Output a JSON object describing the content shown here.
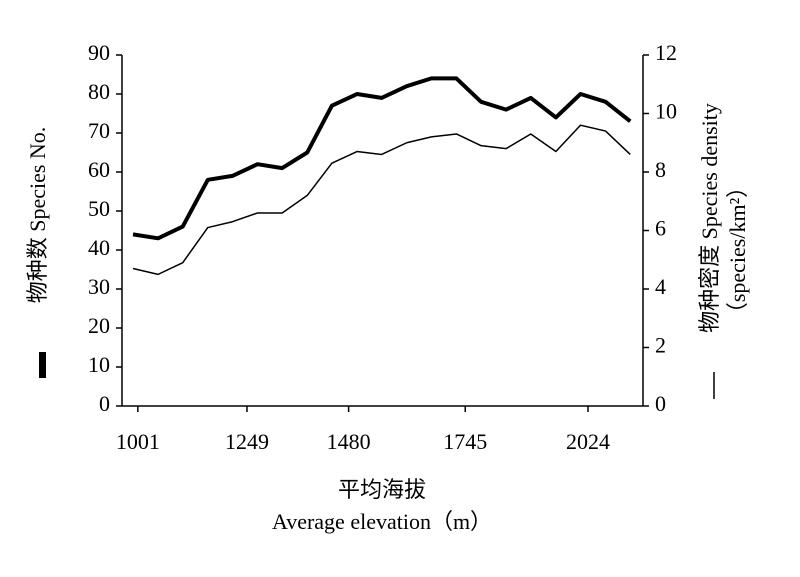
{
  "chart_data": {
    "type": "line",
    "x_label": "平均海拔",
    "x_label_en": "Average elevation（m）",
    "y_label": "物种数  Species No.",
    "y2_label": "物种密度 Species density",
    "y2_label_unit": "（species/km²）",
    "x": [
      990,
      1047,
      1103,
      1160,
      1216,
      1273,
      1329,
      1386,
      1442,
      1499,
      1555,
      1612,
      1668,
      1725,
      1781,
      1838,
      1894,
      1951,
      2007,
      2064,
      2120
    ],
    "series": [
      {
        "name": "物种数",
        "color": "#000000",
        "width": 4,
        "values": [
          44,
          43,
          46,
          58,
          59,
          62,
          61,
          65,
          77,
          80,
          79,
          82,
          84,
          84,
          78,
          76,
          79,
          74,
          80,
          78,
          73
        ]
      },
      {
        "name": "物种密度",
        "color": "#000000",
        "width": 1.5,
        "axis": "y2",
        "values": [
          4.7,
          4.5,
          4.9,
          6.1,
          6.3,
          6.6,
          6.6,
          7.2,
          8.3,
          8.7,
          8.6,
          9.0,
          9.2,
          9.3,
          8.9,
          8.8,
          9.3,
          8.7,
          9.6,
          9.4,
          8.6
        ]
      }
    ],
    "xlim": [
      965,
      2149
    ],
    "xticks": [
      1001,
      1249,
      1480,
      1745,
      2024
    ],
    "ylim": [
      0,
      90
    ],
    "yticks": [
      0,
      10,
      20,
      30,
      40,
      50,
      60,
      70,
      80,
      90
    ],
    "y2lim": [
      0,
      12
    ],
    "y2ticks": [
      0,
      2,
      4,
      6,
      8,
      10,
      12
    ]
  }
}
